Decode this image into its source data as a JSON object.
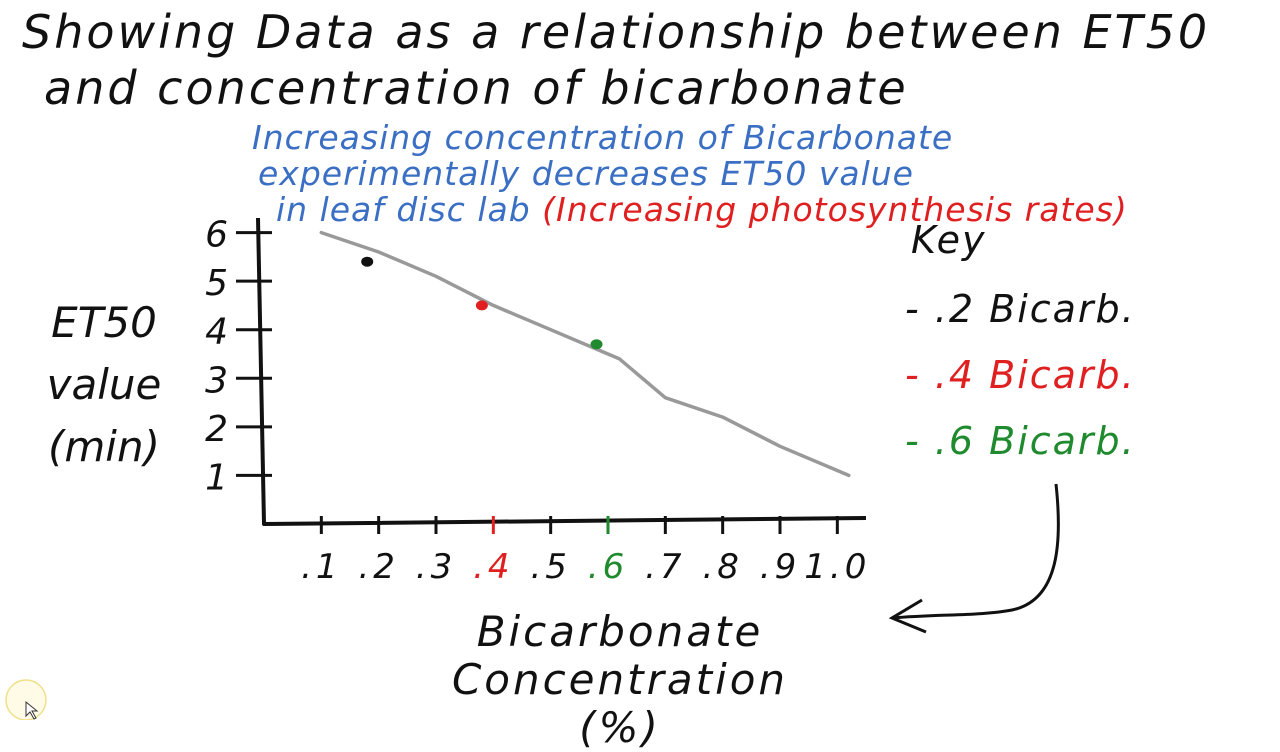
{
  "title": {
    "line1": "Showing Data as a relationship between ET50",
    "line2": "and concentration of bicarbonate"
  },
  "annotation": {
    "line1": "Increasing concentration of Bicarbonate",
    "line2": "experimentally decreases ET50 value",
    "line3_blue": "in leaf disc lab",
    "line3_red": "(Increasing photosynthesis rates)"
  },
  "key": {
    "title": "Key",
    "items": [
      {
        "label": "- .2 Bicarb.",
        "color": "#111111"
      },
      {
        "label": "- .4 Bicarb.",
        "color": "#e02020"
      },
      {
        "label": "- .6 Bicarb.",
        "color": "#1f8a2e"
      }
    ]
  },
  "chart_data": {
    "type": "line",
    "ylabel": [
      "ET50",
      "value",
      "(min)"
    ],
    "xlabel": [
      "Bicarbonate Concentration",
      "(%)"
    ],
    "xticks": [
      ".1",
      ".2",
      ".3",
      ".4",
      ".5",
      ".6",
      ".7",
      ".8",
      ".9",
      "1.0"
    ],
    "yticks": [
      "1",
      "2",
      "3",
      "4",
      "5",
      "6"
    ],
    "xticks_values": [
      0.1,
      0.2,
      0.3,
      0.4,
      0.5,
      0.6,
      0.7,
      0.8,
      0.9,
      1.0
    ],
    "yticks_values": [
      1,
      2,
      3,
      4,
      5,
      6
    ],
    "xlim": [
      0.0,
      1.05
    ],
    "ylim": [
      0,
      6.3
    ],
    "grid": false,
    "line": {
      "color": "#999999",
      "x": [
        0.1,
        0.2,
        0.3,
        0.4,
        0.5,
        0.58,
        0.62,
        0.7,
        0.8,
        0.9,
        1.02
      ],
      "y": [
        6.0,
        5.6,
        5.1,
        4.5,
        4.0,
        3.6,
        3.4,
        2.6,
        2.2,
        1.6,
        1.0
      ]
    },
    "points": [
      {
        "x": 0.18,
        "y": 5.4,
        "color": "#111111"
      },
      {
        "x": 0.38,
        "y": 4.5,
        "color": "#e02020"
      },
      {
        "x": 0.58,
        "y": 3.7,
        "color": "#1f8a2e"
      }
    ],
    "tick_colors": {
      ".4": "#e02020",
      ".6": "#1f8a2e"
    }
  },
  "cursor_icon": "pointer-cursor-icon"
}
